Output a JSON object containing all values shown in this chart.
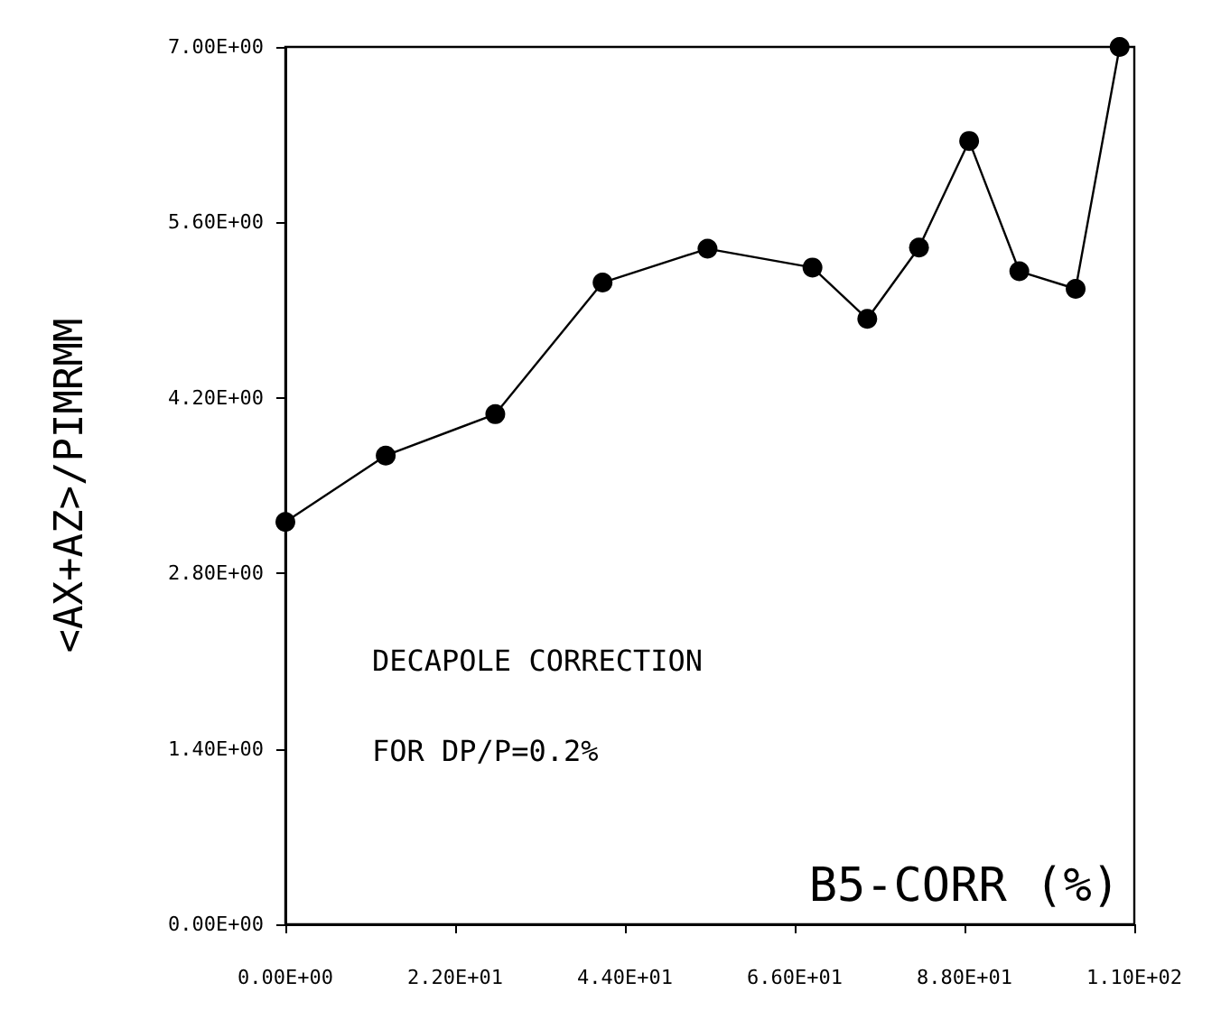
{
  "chart_data": {
    "type": "line",
    "ylabel": "<AX+AZ>/PIMRMM",
    "xlabel": "B5-CORR (%)",
    "annotations": [
      "DECAPOLE CORRECTION",
      "FOR DP/P=0.2%"
    ],
    "x": [
      0,
      13.0,
      27.2,
      41.1,
      54.7,
      68.3,
      75.4,
      82.1,
      88.6,
      95.1,
      102.4,
      108.1
    ],
    "series": [
      {
        "color": "#000000",
        "values": [
          3.21,
          3.74,
          4.07,
          5.12,
          5.39,
          5.24,
          4.83,
          5.4,
          6.25,
          5.21,
          5.07,
          7.0
        ]
      }
    ],
    "xlim": [
      0,
      110
    ],
    "xticks": [
      {
        "value": 0,
        "label": "0.00E+00"
      },
      {
        "value": 22,
        "label": "2.20E+01"
      },
      {
        "value": 44,
        "label": "4.40E+01"
      },
      {
        "value": 66,
        "label": "6.60E+01"
      },
      {
        "value": 88,
        "label": "8.80E+01"
      },
      {
        "value": 110,
        "label": "1.10E+02"
      }
    ],
    "ylim": [
      0,
      7
    ],
    "yticks": [
      {
        "value": 0,
        "label": "0.00E+00"
      },
      {
        "value": 1.4,
        "label": "1.40E+00"
      },
      {
        "value": 2.8,
        "label": "2.80E+00"
      },
      {
        "value": 4.2,
        "label": "4.20E+00"
      },
      {
        "value": 5.6,
        "label": "5.60E+00"
      },
      {
        "value": 7,
        "label": "7.00E+00"
      }
    ],
    "grid": false,
    "marker": "circle",
    "line_style": "solid"
  }
}
